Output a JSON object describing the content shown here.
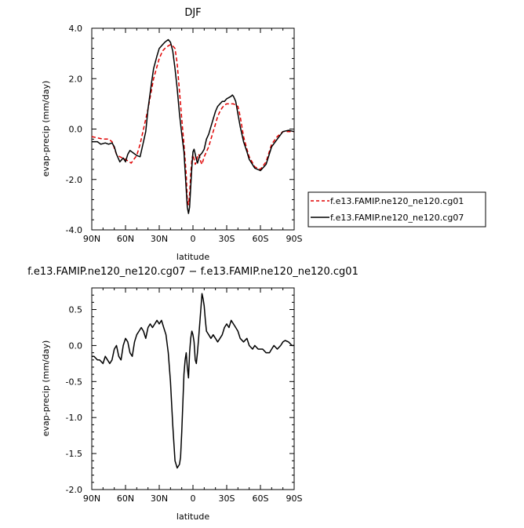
{
  "chart_data": [
    {
      "type": "line",
      "title": "DJF",
      "xlabel": "latitude",
      "ylabel": "evap-precip (mm/day)",
      "xlim": [
        -90,
        90
      ],
      "ylim": [
        -4.0,
        4.0
      ],
      "xticks": [
        -90,
        -60,
        -30,
        0,
        30,
        60,
        90
      ],
      "xtick_labels": [
        "90N",
        "60N",
        "30N",
        "0",
        "30S",
        "60S",
        "90S"
      ],
      "yticks": [
        -4,
        -2,
        0,
        2,
        4
      ],
      "ytick_labels": [
        "-4.0",
        "-2.0",
        "0.0",
        "2.0",
        "4.0"
      ],
      "legend_position": "right",
      "series": [
        {
          "name": "f.e13.FAMIP.ne120_ne120.cg01",
          "color": "#e00000",
          "dash": "dashed",
          "x": [
            -90,
            -85,
            -80,
            -75,
            -72,
            -68,
            -65,
            -60,
            -55,
            -50,
            -47,
            -45,
            -40,
            -35,
            -30,
            -27,
            -25,
            -22,
            -20,
            -18,
            -16,
            -14,
            -12,
            -10,
            -8,
            -6,
            -5,
            -4,
            -3,
            -2,
            -1,
            0,
            1,
            2,
            3,
            4,
            5,
            6,
            7,
            8,
            10,
            12,
            14,
            16,
            18,
            20,
            22,
            24,
            26,
            28,
            30,
            32,
            34,
            36,
            38,
            40,
            42,
            45,
            48,
            50,
            55,
            60,
            65,
            70,
            75,
            80,
            85,
            90
          ],
          "y": [
            -0.3,
            -0.35,
            -0.4,
            -0.4,
            -0.5,
            -1.0,
            -1.1,
            -1.2,
            -1.35,
            -1.05,
            -0.6,
            -0.2,
            0.8,
            2.0,
            2.8,
            3.1,
            3.2,
            3.3,
            3.35,
            3.3,
            3.2,
            2.6,
            1.5,
            0.4,
            -0.6,
            -1.8,
            -2.8,
            -3.0,
            -2.6,
            -1.8,
            -1.2,
            -1.0,
            -1.2,
            -1.4,
            -1.3,
            -1.1,
            -1.0,
            -1.1,
            -1.3,
            -1.4,
            -1.1,
            -0.9,
            -0.7,
            -0.4,
            -0.1,
            0.2,
            0.5,
            0.7,
            0.85,
            0.95,
            1.0,
            1.0,
            1.0,
            1.0,
            0.95,
            0.9,
            0.5,
            -0.3,
            -0.8,
            -1.1,
            -1.5,
            -1.6,
            -1.3,
            -0.6,
            -0.3,
            -0.1,
            -0.1,
            -0.1
          ]
        },
        {
          "name": "f.e13.FAMIP.ne120_ne120.cg07",
          "color": "#000000",
          "dash": "solid",
          "x": [
            -90,
            -85,
            -82,
            -78,
            -75,
            -72,
            -70,
            -68,
            -65,
            -62,
            -60,
            -58,
            -56,
            -53,
            -50,
            -47,
            -45,
            -42,
            -40,
            -37,
            -35,
            -32,
            -30,
            -27,
            -25,
            -22,
            -20,
            -18,
            -16,
            -14,
            -12,
            -10,
            -8,
            -6,
            -5,
            -4,
            -3,
            -2,
            -1,
            0,
            1,
            2,
            3,
            4,
            5,
            6,
            8,
            10,
            12,
            14,
            16,
            18,
            20,
            22,
            24,
            26,
            28,
            30,
            32,
            34,
            35,
            36,
            38,
            40,
            42,
            45,
            48,
            50,
            55,
            60,
            65,
            70,
            75,
            80,
            85,
            90
          ],
          "y": [
            -0.5,
            -0.5,
            -0.6,
            -0.55,
            -0.6,
            -0.55,
            -0.7,
            -1.0,
            -1.3,
            -1.15,
            -1.3,
            -1.0,
            -0.85,
            -0.95,
            -1.05,
            -1.1,
            -0.7,
            -0.1,
            0.8,
            1.8,
            2.4,
            2.9,
            3.2,
            3.35,
            3.45,
            3.55,
            3.45,
            3.1,
            2.4,
            1.6,
            0.6,
            -0.2,
            -0.9,
            -2.4,
            -3.1,
            -3.35,
            -3.1,
            -2.3,
            -1.5,
            -0.9,
            -0.8,
            -1.0,
            -1.2,
            -1.35,
            -1.2,
            -1.05,
            -0.95,
            -0.8,
            -0.4,
            -0.2,
            0.1,
            0.4,
            0.7,
            0.9,
            1.0,
            1.1,
            1.1,
            1.2,
            1.25,
            1.3,
            1.35,
            1.3,
            1.1,
            0.6,
            0.1,
            -0.5,
            -0.9,
            -1.2,
            -1.55,
            -1.65,
            -1.4,
            -0.7,
            -0.4,
            -0.1,
            -0.05,
            -0.1
          ]
        }
      ]
    },
    {
      "type": "line",
      "title": "f.e13.FAMIP.ne120_ne120.cg07 − f.e13.FAMIP.ne120_ne120.cg01",
      "xlabel": "latitude",
      "ylabel": "evap-precip (mm/day)",
      "xlim": [
        -90,
        90
      ],
      "ylim": [
        -2.0,
        0.8
      ],
      "xticks": [
        -90,
        -60,
        -30,
        0,
        30,
        60,
        90
      ],
      "xtick_labels": [
        "90N",
        "60N",
        "30N",
        "0",
        "30S",
        "60S",
        "90S"
      ],
      "yticks": [
        -2.0,
        -1.5,
        -1.0,
        -0.5,
        0.0,
        0.5
      ],
      "ytick_labels": [
        "-2.0",
        "-1.5",
        "-1.0",
        "-0.5",
        "0.0",
        "0.5"
      ],
      "series": [
        {
          "color": "#000000",
          "dash": "solid",
          "x": [
            -90,
            -88,
            -85,
            -83,
            -80,
            -78,
            -76,
            -74,
            -72,
            -70,
            -68,
            -66,
            -64,
            -62,
            -60,
            -58,
            -56,
            -54,
            -52,
            -50,
            -48,
            -46,
            -44,
            -42,
            -40,
            -38,
            -36,
            -34,
            -32,
            -30,
            -28,
            -26,
            -24,
            -22,
            -20,
            -18,
            -16,
            -14,
            -12,
            -11,
            -10,
            -9,
            -8,
            -7,
            -6,
            -5,
            -4,
            -3,
            -2,
            -1,
            0,
            1,
            2,
            3,
            4,
            5,
            6,
            7,
            8,
            9,
            10,
            11,
            12,
            14,
            16,
            18,
            20,
            22,
            24,
            26,
            28,
            30,
            32,
            34,
            36,
            38,
            40,
            42,
            45,
            48,
            50,
            53,
            55,
            58,
            60,
            62,
            65,
            68,
            70,
            72,
            75,
            78,
            80,
            82,
            85,
            88,
            90
          ],
          "y": [
            -0.15,
            -0.15,
            -0.2,
            -0.2,
            -0.25,
            -0.15,
            -0.2,
            -0.25,
            -0.2,
            -0.05,
            0.0,
            -0.15,
            -0.2,
            0.0,
            0.1,
            0.05,
            -0.1,
            -0.15,
            0.05,
            0.15,
            0.2,
            0.25,
            0.2,
            0.1,
            0.25,
            0.3,
            0.25,
            0.3,
            0.35,
            0.3,
            0.35,
            0.25,
            0.15,
            -0.1,
            -0.5,
            -1.1,
            -1.6,
            -1.7,
            -1.65,
            -1.55,
            -1.2,
            -0.8,
            -0.4,
            -0.2,
            -0.1,
            -0.3,
            -0.45,
            -0.1,
            0.1,
            0.2,
            0.15,
            0.05,
            -0.2,
            -0.25,
            -0.1,
            0.1,
            0.3,
            0.5,
            0.72,
            0.65,
            0.55,
            0.35,
            0.2,
            0.15,
            0.1,
            0.15,
            0.1,
            0.05,
            0.1,
            0.15,
            0.25,
            0.3,
            0.25,
            0.35,
            0.3,
            0.25,
            0.2,
            0.1,
            0.05,
            0.1,
            0.0,
            -0.05,
            0.0,
            -0.05,
            -0.05,
            -0.05,
            -0.1,
            -0.1,
            -0.05,
            0.0,
            -0.05,
            0.0,
            0.05,
            0.07,
            0.05,
            0.0,
            0.0
          ]
        }
      ]
    }
  ]
}
